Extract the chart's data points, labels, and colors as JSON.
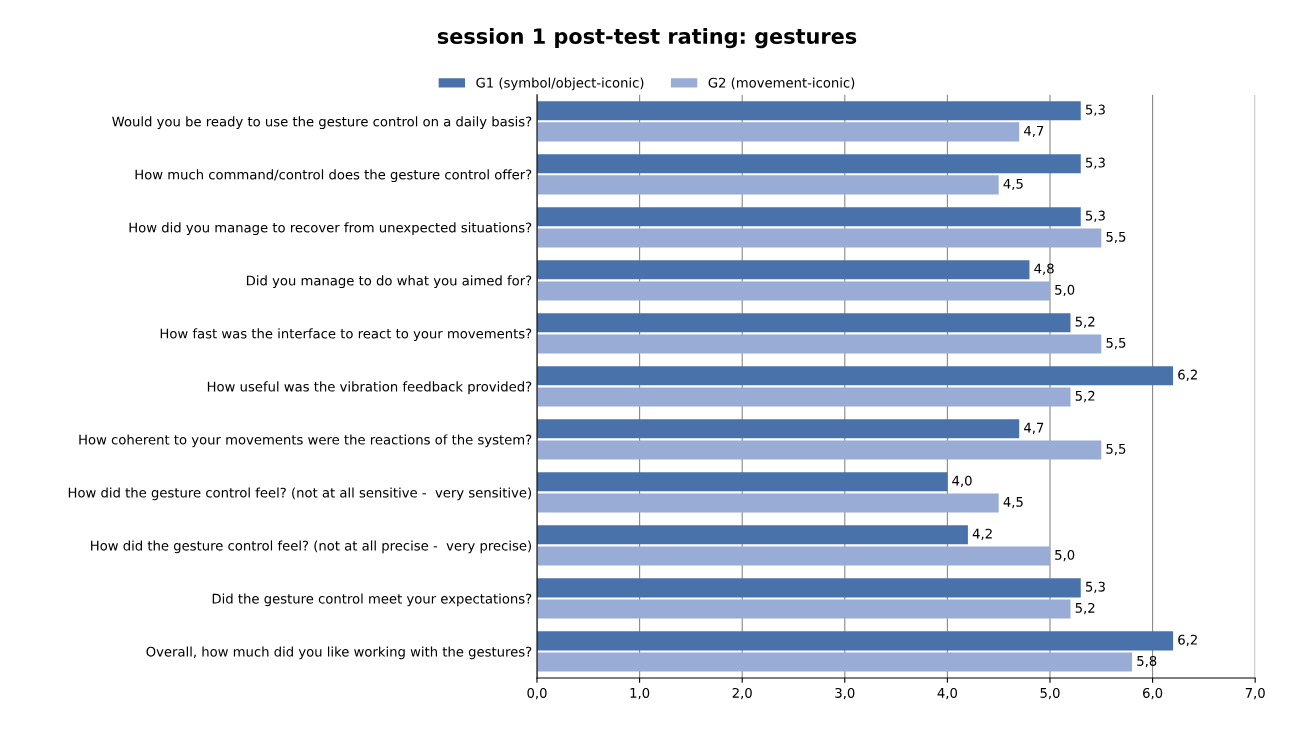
{
  "chart_data": {
    "type": "bar",
    "orientation": "horizontal",
    "title": "session 1 post-test rating: gestures",
    "categories": [
      "Would you be ready to use the gesture control on a daily basis?",
      "How much command/control does the gesture control offer?",
      "How did you manage to recover from unexpected situations?",
      "Did you manage to do what you aimed for?",
      "How fast was the interface to react to your movements?",
      "How useful was the vibration feedback provided?",
      "How coherent to your movements were the reactions of the system?",
      "How did the gesture control feel? (not at all sensitive -  very sensitive)",
      "How did the gesture control feel? (not at all precise -  very precise)",
      "Did the gesture control meet your expectations?",
      "Overall, how much did you like working with the gestures?"
    ],
    "series": [
      {
        "name": "G1 (symbol/object-iconic)",
        "color": "#4a72aa",
        "values": [
          5.3,
          5.3,
          5.3,
          4.8,
          5.2,
          6.2,
          4.7,
          4.0,
          4.2,
          5.3,
          6.2
        ],
        "value_labels": [
          "5,3",
          "5,3",
          "5,3",
          "4,8",
          "5,2",
          "6,2",
          "4,7",
          "4,0",
          "4,2",
          "5,3",
          "6,2"
        ]
      },
      {
        "name": "G2 (movement-iconic)",
        "color": "#98acd6",
        "values": [
          4.7,
          4.5,
          5.5,
          5.0,
          5.5,
          5.2,
          5.5,
          4.5,
          5.0,
          5.2,
          5.8
        ],
        "value_labels": [
          "4,7",
          "4,5",
          "5,5",
          "5,0",
          "5,5",
          "5,2",
          "5,5",
          "4,5",
          "5,0",
          "5,2",
          "5,8"
        ]
      }
    ],
    "xlim": [
      0,
      7
    ],
    "xticks": [
      {
        "value": 0,
        "label": "0,0"
      },
      {
        "value": 1,
        "label": "1,0"
      },
      {
        "value": 2,
        "label": "2,0"
      },
      {
        "value": 3,
        "label": "3,0"
      },
      {
        "value": 4,
        "label": "4,0"
      },
      {
        "value": 5,
        "label": "5,0"
      },
      {
        "value": 6,
        "label": "6,0"
      },
      {
        "value": 7,
        "label": "7,0"
      }
    ],
    "grid": "x",
    "legend": "top"
  }
}
